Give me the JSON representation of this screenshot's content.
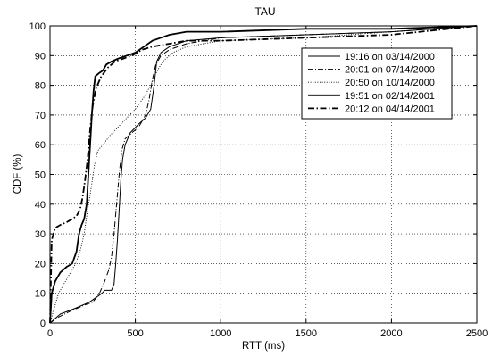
{
  "chart_data": {
    "type": "line",
    "title": "TAU",
    "xlabel": "RTT (ms)",
    "ylabel": "CDF (%)",
    "xlim": [
      0,
      2500
    ],
    "ylim": [
      0,
      100
    ],
    "xticks": [
      0,
      500,
      1000,
      1500,
      2000,
      2500
    ],
    "yticks": [
      0,
      10,
      20,
      30,
      40,
      50,
      60,
      70,
      80,
      90,
      100
    ],
    "grid": true,
    "legend_position": "top-right",
    "series": [
      {
        "name": "19:16 on 03/14/2000",
        "style": "solid-thin",
        "points": [
          [
            0,
            0
          ],
          [
            60,
            3
          ],
          [
            150,
            5
          ],
          [
            230,
            7
          ],
          [
            280,
            9
          ],
          [
            305,
            10
          ],
          [
            320,
            11
          ],
          [
            360,
            11
          ],
          [
            375,
            13
          ],
          [
            385,
            20
          ],
          [
            395,
            28
          ],
          [
            405,
            38
          ],
          [
            415,
            48
          ],
          [
            425,
            55
          ],
          [
            440,
            60
          ],
          [
            470,
            64
          ],
          [
            520,
            67
          ],
          [
            560,
            69
          ],
          [
            590,
            72
          ],
          [
            610,
            80
          ],
          [
            625,
            88
          ],
          [
            650,
            91
          ],
          [
            700,
            93
          ],
          [
            800,
            95
          ],
          [
            1000,
            96
          ],
          [
            1500,
            97
          ],
          [
            2000,
            98
          ],
          [
            2500,
            100
          ]
        ]
      },
      {
        "name": "20:01 on 07/14/2000",
        "style": "dashdot-thin",
        "points": [
          [
            0,
            0
          ],
          [
            50,
            2
          ],
          [
            120,
            4
          ],
          [
            200,
            6
          ],
          [
            250,
            7
          ],
          [
            290,
            10
          ],
          [
            320,
            14
          ],
          [
            345,
            18
          ],
          [
            360,
            22
          ],
          [
            375,
            30
          ],
          [
            390,
            40
          ],
          [
            405,
            50
          ],
          [
            420,
            58
          ],
          [
            440,
            62
          ],
          [
            480,
            64
          ],
          [
            520,
            66
          ],
          [
            560,
            70
          ],
          [
            580,
            75
          ],
          [
            600,
            82
          ],
          [
            620,
            87
          ],
          [
            650,
            90
          ],
          [
            700,
            92
          ],
          [
            800,
            94
          ],
          [
            1000,
            96
          ],
          [
            1500,
            97
          ],
          [
            2000,
            98
          ],
          [
            2500,
            100
          ]
        ]
      },
      {
        "name": "20:50 on 10/14/2000",
        "style": "dotted",
        "points": [
          [
            0,
            0
          ],
          [
            20,
            4
          ],
          [
            50,
            10
          ],
          [
            100,
            15
          ],
          [
            150,
            20
          ],
          [
            180,
            25
          ],
          [
            200,
            30
          ],
          [
            220,
            38
          ],
          [
            240,
            45
          ],
          [
            260,
            53
          ],
          [
            280,
            58
          ],
          [
            310,
            60
          ],
          [
            350,
            63
          ],
          [
            400,
            66
          ],
          [
            450,
            69
          ],
          [
            500,
            72
          ],
          [
            550,
            76
          ],
          [
            590,
            80
          ],
          [
            620,
            84
          ],
          [
            660,
            88
          ],
          [
            720,
            91
          ],
          [
            800,
            93
          ],
          [
            1000,
            95
          ],
          [
            1500,
            96
          ],
          [
            2000,
            98
          ],
          [
            2500,
            100
          ]
        ]
      },
      {
        "name": "19:51 on 02/14/2001",
        "style": "solid-thick",
        "points": [
          [
            0,
            0
          ],
          [
            10,
            10
          ],
          [
            30,
            14
          ],
          [
            60,
            17
          ],
          [
            100,
            19
          ],
          [
            130,
            20
          ],
          [
            155,
            24
          ],
          [
            170,
            30
          ],
          [
            185,
            33
          ],
          [
            200,
            35
          ],
          [
            215,
            40
          ],
          [
            225,
            50
          ],
          [
            235,
            60
          ],
          [
            245,
            70
          ],
          [
            255,
            78
          ],
          [
            265,
            83
          ],
          [
            285,
            84
          ],
          [
            310,
            85
          ],
          [
            330,
            87
          ],
          [
            360,
            88
          ],
          [
            400,
            89
          ],
          [
            450,
            90
          ],
          [
            500,
            91
          ],
          [
            550,
            93
          ],
          [
            600,
            95
          ],
          [
            650,
            96
          ],
          [
            700,
            97
          ],
          [
            800,
            98
          ],
          [
            1000,
            98
          ],
          [
            1500,
            99
          ],
          [
            2000,
            99
          ],
          [
            2500,
            100
          ]
        ]
      },
      {
        "name": "20:12 on 04/14/2001",
        "style": "dashdot-thick",
        "points": [
          [
            0,
            0
          ],
          [
            10,
            28
          ],
          [
            30,
            32
          ],
          [
            60,
            33
          ],
          [
            100,
            34
          ],
          [
            130,
            35
          ],
          [
            155,
            36
          ],
          [
            175,
            38
          ],
          [
            190,
            42
          ],
          [
            205,
            48
          ],
          [
            220,
            55
          ],
          [
            235,
            65
          ],
          [
            250,
            73
          ],
          [
            270,
            79
          ],
          [
            300,
            83
          ],
          [
            340,
            86
          ],
          [
            380,
            88
          ],
          [
            430,
            89
          ],
          [
            480,
            90
          ],
          [
            540,
            92
          ],
          [
            600,
            93
          ],
          [
            700,
            94
          ],
          [
            800,
            95
          ],
          [
            1000,
            95
          ],
          [
            1500,
            96
          ],
          [
            2000,
            97
          ],
          [
            2500,
            100
          ]
        ]
      }
    ]
  }
}
